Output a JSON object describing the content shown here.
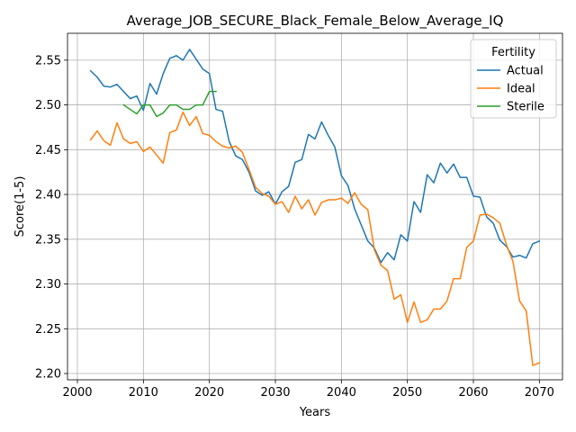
{
  "chart_data": {
    "type": "line",
    "title": "Average_JOB_SECURE_Black_Female_Below_Average_IQ",
    "xlabel": "Years",
    "ylabel": "Score(1-5)",
    "xlim": [
      1998.5,
      2073.5
    ],
    "ylim": [
      2.193,
      2.58
    ],
    "xticks": [
      2000,
      2010,
      2020,
      2030,
      2040,
      2050,
      2060,
      2070
    ],
    "yticks": [
      2.2,
      2.25,
      2.3,
      2.35,
      2.4,
      2.45,
      2.5,
      2.55
    ],
    "ytick_labels": [
      "2.20",
      "2.25",
      "2.30",
      "2.35",
      "2.40",
      "2.45",
      "2.50",
      "2.55"
    ],
    "grid": true,
    "legend": {
      "title": "Fertility",
      "placement": "top-right"
    },
    "series": [
      {
        "name": "Actual",
        "color": "#1f77b4",
        "x": [
          2002,
          2003,
          2004,
          2005,
          2006,
          2007,
          2008,
          2009,
          2010,
          2011,
          2012,
          2013,
          2014,
          2015,
          2016,
          2017,
          2018,
          2019,
          2020,
          2021,
          2022,
          2023,
          2024,
          2025,
          2026,
          2027,
          2028,
          2029,
          2030,
          2031,
          2032,
          2033,
          2034,
          2035,
          2036,
          2037,
          2038,
          2039,
          2040,
          2041,
          2042,
          2043,
          2044,
          2045,
          2046,
          2047,
          2048,
          2049,
          2050,
          2051,
          2052,
          2053,
          2054,
          2055,
          2056,
          2057,
          2058,
          2059,
          2060,
          2061,
          2062,
          2063,
          2064,
          2065,
          2066,
          2067,
          2068,
          2069,
          2070
        ],
        "values": [
          2.538,
          2.531,
          2.521,
          2.52,
          2.523,
          2.515,
          2.507,
          2.51,
          2.494,
          2.524,
          2.512,
          2.535,
          2.552,
          2.555,
          2.55,
          2.562,
          2.551,
          2.54,
          2.535,
          2.495,
          2.493,
          2.459,
          2.443,
          2.439,
          2.425,
          2.404,
          2.399,
          2.403,
          2.389,
          2.403,
          2.409,
          2.436,
          2.439,
          2.467,
          2.462,
          2.481,
          2.466,
          2.453,
          2.421,
          2.41,
          2.384,
          2.366,
          2.348,
          2.34,
          2.324,
          2.335,
          2.327,
          2.355,
          2.348,
          2.392,
          2.38,
          2.422,
          2.413,
          2.435,
          2.424,
          2.434,
          2.419,
          2.419,
          2.398,
          2.397,
          2.375,
          2.368,
          2.349,
          2.342,
          2.33,
          2.332,
          2.329,
          2.345,
          2.348
        ]
      },
      {
        "name": "Ideal",
        "color": "#ff7f0e",
        "x": [
          2002,
          2003,
          2004,
          2005,
          2006,
          2007,
          2008,
          2009,
          2010,
          2011,
          2012,
          2013,
          2014,
          2015,
          2016,
          2017,
          2018,
          2019,
          2020,
          2021,
          2022,
          2023,
          2024,
          2025,
          2026,
          2027,
          2028,
          2029,
          2030,
          2031,
          2032,
          2033,
          2034,
          2035,
          2036,
          2037,
          2038,
          2039,
          2040,
          2041,
          2042,
          2043,
          2044,
          2045,
          2046,
          2047,
          2048,
          2049,
          2050,
          2051,
          2052,
          2053,
          2054,
          2055,
          2056,
          2057,
          2058,
          2059,
          2060,
          2061,
          2062,
          2063,
          2064,
          2065,
          2066,
          2067,
          2068,
          2069,
          2070
        ],
        "values": [
          2.461,
          2.471,
          2.46,
          2.455,
          2.48,
          2.462,
          2.457,
          2.459,
          2.448,
          2.453,
          2.444,
          2.435,
          2.469,
          2.472,
          2.492,
          2.477,
          2.487,
          2.468,
          2.466,
          2.459,
          2.454,
          2.452,
          2.454,
          2.447,
          2.428,
          2.408,
          2.401,
          2.398,
          2.389,
          2.392,
          2.38,
          2.398,
          2.384,
          2.394,
          2.377,
          2.391,
          2.394,
          2.394,
          2.396,
          2.39,
          2.402,
          2.389,
          2.383,
          2.338,
          2.321,
          2.315,
          2.283,
          2.288,
          2.257,
          2.28,
          2.257,
          2.26,
          2.272,
          2.272,
          2.281,
          2.306,
          2.306,
          2.341,
          2.348,
          2.377,
          2.378,
          2.374,
          2.368,
          2.344,
          2.325,
          2.281,
          2.27,
          2.209,
          2.212
        ]
      },
      {
        "name": "Sterile",
        "color": "#2ca02c",
        "x": [
          2007,
          2008,
          2009,
          2010,
          2011,
          2012,
          2013,
          2014,
          2015,
          2016,
          2017,
          2018,
          2019,
          2020,
          2021
        ],
        "values": [
          2.5,
          2.495,
          2.49,
          2.5,
          2.5,
          2.487,
          2.491,
          2.5,
          2.5,
          2.495,
          2.495,
          2.5,
          2.5,
          2.515,
          2.515
        ]
      }
    ]
  }
}
